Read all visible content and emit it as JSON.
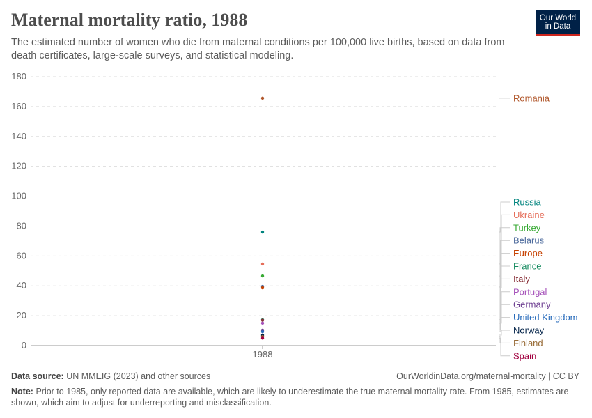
{
  "header": {
    "title": "Maternal mortality ratio, 1988",
    "subtitle": "The estimated number of women who die from maternal conditions per 100,000 live births, based on data from death certificates, large-scale surveys, and statistical modeling.",
    "logo": "Our World in Data"
  },
  "chart_data": {
    "type": "scatter",
    "title": "Maternal mortality ratio, 1988",
    "categories": [
      "1988"
    ],
    "ylim": [
      0,
      180
    ],
    "yticks": [
      0,
      20,
      40,
      60,
      80,
      100,
      120,
      140,
      160,
      180
    ],
    "grid": true,
    "legend_placement": "right",
    "series": [
      {
        "name": "Romania",
        "value": 165.6,
        "color": "#b0562a"
      },
      {
        "name": "Russia",
        "value": 76,
        "color": "#00847e"
      },
      {
        "name": "Ukraine",
        "value": 54.6,
        "color": "#e56e5a"
      },
      {
        "name": "Turkey",
        "value": 46.6,
        "color": "#38aa34"
      },
      {
        "name": "Belarus",
        "value": 39.6,
        "color": "#4c6a9c"
      },
      {
        "name": "Europe",
        "value": 38.7,
        "color": "#c64100"
      },
      {
        "name": "France",
        "value": 17.3,
        "color": "#158a5f"
      },
      {
        "name": "Italy",
        "value": 17,
        "color": "#883039"
      },
      {
        "name": "Portugal",
        "value": 15,
        "color": "#a652ba"
      },
      {
        "name": "Germany",
        "value": 10.3,
        "color": "#6d3e91"
      },
      {
        "name": "United Kingdom",
        "value": 9.3,
        "color": "#286bbb"
      },
      {
        "name": "Norway",
        "value": 7,
        "color": "#002147"
      },
      {
        "name": "Finland",
        "value": 6,
        "color": "#996d39"
      },
      {
        "name": "Spain",
        "value": 5,
        "color": "#a2003f"
      }
    ]
  },
  "footer": {
    "source_label": "Data source:",
    "source": "UN MMEIG (2023) and other sources",
    "url": "OurWorldinData.org/maternal-mortality | CC BY",
    "note_label": "Note:",
    "note": "Prior to 1985, only reported data are available, which are likely to underestimate the true maternal mortality rate. From 1985, estimates are shown, which aim to adjust for underreporting and misclassification."
  }
}
